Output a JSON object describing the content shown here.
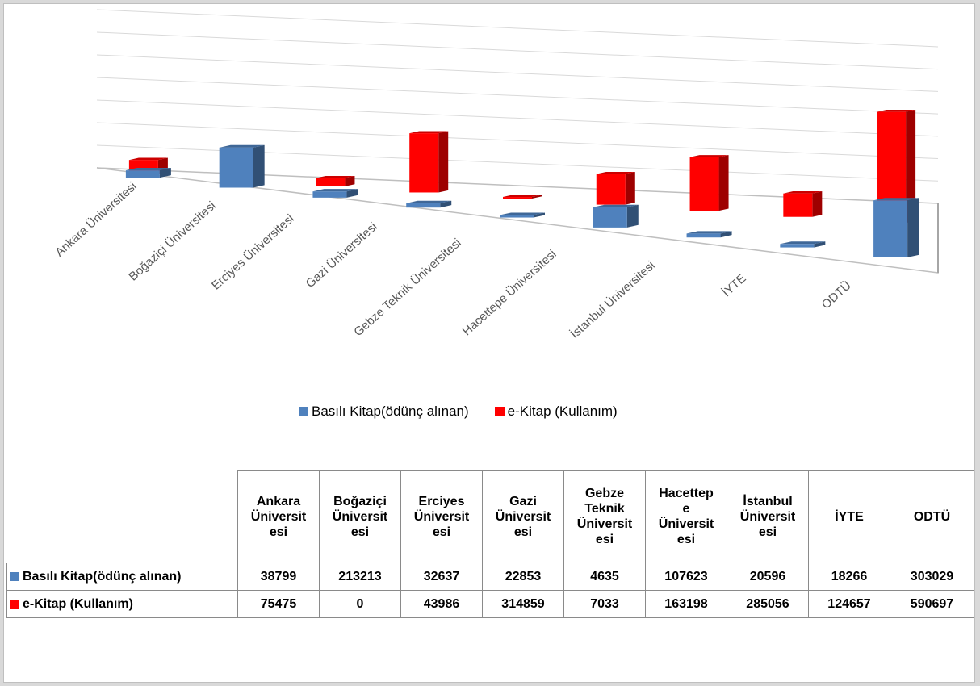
{
  "chart_data": {
    "type": "bar",
    "categories": [
      "Ankara Üniversitesi",
      "Boğaziçi Üniversitesi",
      "Erciyes Üniversitesi",
      "Gazi Üniversitesi",
      "Gebze Teknik Üniversitesi",
      "Hacettepe Üniversitesi",
      "İstanbul Üniversitesi",
      "İYTE",
      "ODTÜ"
    ],
    "series": [
      {
        "name": "Basılı Kitap(ödünç alınan)",
        "values": [
          38799,
          213213,
          32637,
          22853,
          4635,
          107623,
          20596,
          18266,
          303029
        ],
        "color": "#4f81bd"
      },
      {
        "name": "e-Kitap (Kullanım)",
        "values": [
          75475,
          0,
          43986,
          314859,
          7033,
          163198,
          285056,
          124657,
          590697
        ],
        "color": "#ff0000"
      }
    ],
    "legend_position": "bottom",
    "grid": true,
    "style": "3d-column"
  },
  "table": {
    "headers": [
      [
        "Ankara",
        "Üniversit",
        "esi"
      ],
      [
        "Boğaziçi",
        "Üniversit",
        "esi"
      ],
      [
        "Erciyes",
        "Üniversit",
        "esi"
      ],
      [
        "Gazi",
        "Üniversit",
        "esi"
      ],
      [
        "Gebze",
        "Teknik",
        "Üniversit",
        "esi"
      ],
      [
        "Hacettep",
        "e",
        "Üniversit",
        "esi"
      ],
      [
        "İstanbul",
        "Üniversit",
        "esi"
      ],
      [
        "İYTE"
      ],
      [
        "ODTÜ"
      ]
    ],
    "rows": [
      {
        "label": "Basılı Kitap(ödünç alınan)",
        "color": "#4f81bd",
        "values": [
          "38799",
          "213213",
          "32637",
          "22853",
          "4635",
          "107623",
          "20596",
          "18266",
          "303029"
        ]
      },
      {
        "label": "e-Kitap (Kullanım)",
        "color": "#ff0000",
        "values": [
          "75475",
          "0",
          "43986",
          "314859",
          "7033",
          "163198",
          "285056",
          "124657",
          "590697"
        ]
      }
    ]
  }
}
